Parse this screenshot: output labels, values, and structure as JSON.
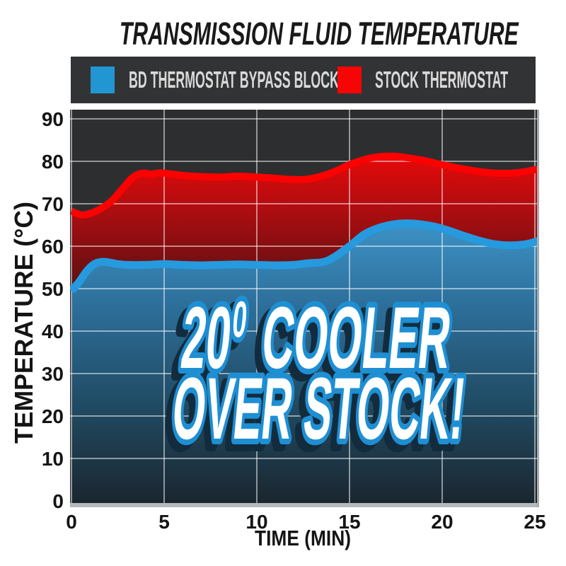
{
  "title": "TRANSMISSION FLUID TEMPERATURE",
  "legend": {
    "items": [
      {
        "label": "BD THERMOSTAT BYPASS BLOCK",
        "color": "#2196d3"
      },
      {
        "label": "STOCK THERMOSTAT",
        "color": "#f60505"
      }
    ]
  },
  "overlay": {
    "line1_num": "20",
    "line1_sup": "0",
    "line1_rest": "COOLER",
    "line2": "OVER STOCK!",
    "full_text": "20° COOLER OVER STOCK!",
    "text_color": "#ffffff",
    "outline_color": "#1e8fd3"
  },
  "colors": {
    "page_background": "#ffffff",
    "plot_background": "#2d2e30",
    "legend_background": "#323335",
    "legend_text": "#d8d8d8",
    "gridline": "rgba(255,255,255,0.5)",
    "baseline": "#b7babc",
    "blue_line": "#269ade",
    "red_line": "#fb0200",
    "tick_text": "#141414"
  },
  "chart_data": {
    "type": "area",
    "title": "TRANSMISSION FLUID TEMPERATURE",
    "xlabel": "TIME (MIN)",
    "ylabel": "TEMPERATURE (°C)",
    "xlim": [
      0,
      25.3
    ],
    "ylim": [
      0,
      90
    ],
    "xticks": [
      0,
      5,
      10,
      15,
      20,
      25
    ],
    "yticks": [
      0,
      10,
      20,
      30,
      40,
      50,
      60,
      70,
      80,
      90
    ],
    "grid": true,
    "legend_position": "top",
    "annotation": "20° COOLER OVER STOCK!",
    "series": [
      {
        "name": "BD THERMOSTAT BYPASS BLOCK",
        "color": "#269ade",
        "points": [
          [
            0,
            49.5
          ],
          [
            0.4,
            51.5
          ],
          [
            0.8,
            54.0
          ],
          [
            1.2,
            55.7
          ],
          [
            1.6,
            56.3
          ],
          [
            2,
            56.2
          ],
          [
            2.5,
            55.8
          ],
          [
            3,
            55.6
          ],
          [
            4,
            55.6
          ],
          [
            5,
            55.8
          ],
          [
            6,
            55.6
          ],
          [
            7,
            55.5
          ],
          [
            8,
            55.6
          ],
          [
            9,
            55.7
          ],
          [
            10,
            55.6
          ],
          [
            11,
            55.5
          ],
          [
            12,
            55.6
          ],
          [
            12.8,
            56.0
          ],
          [
            13.6,
            56.3
          ],
          [
            14.2,
            57.5
          ],
          [
            15,
            60.0
          ],
          [
            15.8,
            62.8
          ],
          [
            16.5,
            64.2
          ],
          [
            17.3,
            65.1
          ],
          [
            18,
            65.4
          ],
          [
            18.8,
            65.2
          ],
          [
            19.6,
            64.6
          ],
          [
            20.4,
            63.6
          ],
          [
            21.2,
            62.4
          ],
          [
            22,
            61.3
          ],
          [
            22.8,
            60.5
          ],
          [
            23.6,
            60.2
          ],
          [
            24.4,
            60.4
          ],
          [
            25,
            61.0
          ],
          [
            25.3,
            61.4
          ]
        ]
      },
      {
        "name": "STOCK THERMOSTAT",
        "color": "#fb0200",
        "points": [
          [
            0,
            68.3
          ],
          [
            0.5,
            67.4
          ],
          [
            1,
            67.7
          ],
          [
            1.6,
            68.9
          ],
          [
            2.2,
            70.8
          ],
          [
            2.8,
            73.8
          ],
          [
            3.3,
            76.2
          ],
          [
            3.8,
            77.2
          ],
          [
            4.3,
            77.0
          ],
          [
            4.8,
            77.3
          ],
          [
            5.4,
            77.0
          ],
          [
            6.2,
            76.6
          ],
          [
            7,
            76.4
          ],
          [
            8,
            76.3
          ],
          [
            9,
            76.5
          ],
          [
            10,
            76.3
          ],
          [
            11,
            76.0
          ],
          [
            12,
            75.7
          ],
          [
            12.7,
            75.8
          ],
          [
            13.4,
            76.4
          ],
          [
            14.2,
            77.6
          ],
          [
            15,
            79.2
          ],
          [
            15.8,
            80.4
          ],
          [
            16.6,
            81.1
          ],
          [
            17.4,
            81.2
          ],
          [
            18.2,
            80.8
          ],
          [
            19,
            80.2
          ],
          [
            20,
            79.2
          ],
          [
            21,
            78.3
          ],
          [
            22,
            77.6
          ],
          [
            23,
            77.2
          ],
          [
            24,
            77.3
          ],
          [
            25,
            78.0
          ],
          [
            25.3,
            78.3
          ]
        ]
      }
    ]
  }
}
